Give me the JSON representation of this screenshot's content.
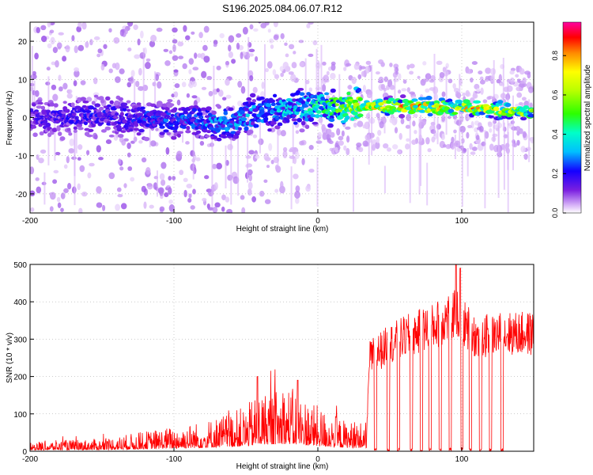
{
  "figure": {
    "title": "S196.2025.084.06.07.R12"
  },
  "chart_data": [
    {
      "type": "heatmap",
      "xlabel": "Height of straight line (km)",
      "ylabel": "Frequency (Hz)",
      "xlim": [
        -200,
        150
      ],
      "ylim": [
        -25,
        25
      ],
      "x_ticks": [
        -200,
        -100,
        0,
        100
      ],
      "y_ticks": [
        -20,
        -10,
        0,
        10,
        20
      ],
      "colorbar": {
        "label": "Normalized spectral amplitude",
        "range": [
          0,
          0.97
        ],
        "ticks": [
          0.0,
          0.2,
          0.4,
          0.6,
          0.8
        ],
        "colormap": [
          "#ffffff",
          "#d8b4f8",
          "#7a1fe0",
          "#1400ff",
          "#00bfff",
          "#00ffc8",
          "#2cff00",
          "#b8ff00",
          "#ffff00",
          "#ff8800",
          "#ff0000",
          "#ff00a0"
        ]
      },
      "ridge_centre_hz": [
        {
          "x": -200,
          "y": 0
        },
        {
          "x": -150,
          "y": 0.5
        },
        {
          "x": -100,
          "y": -0.5
        },
        {
          "x": -60,
          "y": -1.5
        },
        {
          "x": -40,
          "y": 1.5
        },
        {
          "x": 0,
          "y": 3
        },
        {
          "x": 50,
          "y": 3
        },
        {
          "x": 100,
          "y": 2.5
        },
        {
          "x": 150,
          "y": 1.5
        }
      ],
      "peak_amplitude_by_height": [
        {
          "x": -200,
          "v": 0.2
        },
        {
          "x": -100,
          "v": 0.3
        },
        {
          "x": -40,
          "v": 0.4
        },
        {
          "x": 0,
          "v": 0.5
        },
        {
          "x": 30,
          "v": 0.85
        },
        {
          "x": 75,
          "v": 0.95
        },
        {
          "x": 110,
          "v": 0.9
        },
        {
          "x": 150,
          "v": 0.75
        }
      ]
    },
    {
      "type": "line",
      "xlabel": "Height of straight line (km)",
      "ylabel": "SNR (10 * v/v)",
      "xlim": [
        -200,
        150
      ],
      "ylim": [
        0,
        500
      ],
      "x_ticks": [
        -200,
        -100,
        0,
        100
      ],
      "y_ticks": [
        0,
        100,
        200,
        300,
        400,
        500
      ],
      "color": "#ff0000",
      "envelope": [
        {
          "x": -200,
          "y": 20
        },
        {
          "x": -150,
          "y": 25
        },
        {
          "x": -120,
          "y": 40
        },
        {
          "x": -80,
          "y": 60
        },
        {
          "x": -50,
          "y": 90
        },
        {
          "x": -40,
          "y": 120
        },
        {
          "x": -20,
          "y": 130
        },
        {
          "x": 0,
          "y": 90
        },
        {
          "x": 20,
          "y": 60
        },
        {
          "x": 34,
          "y": 60
        },
        {
          "x": 36,
          "y": 270
        },
        {
          "x": 50,
          "y": 310
        },
        {
          "x": 60,
          "y": 330
        },
        {
          "x": 80,
          "y": 360
        },
        {
          "x": 95,
          "y": 400
        },
        {
          "x": 110,
          "y": 330
        },
        {
          "x": 130,
          "y": 340
        },
        {
          "x": 150,
          "y": 340
        }
      ],
      "dropouts_x": [
        40,
        49,
        56,
        65,
        72,
        78,
        85,
        92,
        100,
        106,
        113,
        120,
        128
      ],
      "peaks": [
        {
          "x": -42,
          "y": 200
        },
        {
          "x": -14,
          "y": 190
        },
        {
          "x": 96,
          "y": 500
        },
        {
          "x": 99,
          "y": 490
        }
      ]
    }
  ]
}
